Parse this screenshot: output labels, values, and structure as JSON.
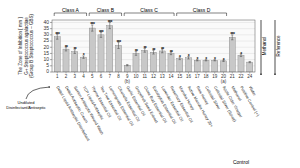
{
  "chart_data": {
    "type": "bar",
    "y_label": "The Zone of Inhibition [ mm ]\nG+ Streptococcus agalactiae\n(Group B Streptococcus – GBS)",
    "categories": [
      "1",
      "2",
      "3",
      "4",
      "5",
      "6",
      "7",
      "8",
      "9\n(b)",
      "10",
      "11",
      "12",
      "13",
      "14",
      "15",
      "16",
      "17",
      "18",
      "19",
      "20\n(a)",
      "21",
      "22",
      "24"
    ],
    "values": [
      28.5,
      18.5,
      16.5,
      12.0,
      35.5,
      30.0,
      37.5,
      21.5,
      5.5,
      15.0,
      17.5,
      16.0,
      17.0,
      15.0,
      11.0,
      11.5,
      9.5,
      9.5,
      9.5,
      9.0,
      28.0,
      13.5,
      8.0
    ],
    "errors": [
      2.0,
      1.5,
      1.5,
      1.0,
      2.5,
      2.0,
      2.5,
      2.5,
      0.5,
      1.5,
      1.5,
      1.5,
      1.5,
      1.0,
      1.0,
      1.0,
      0.5,
      0.5,
      0.5,
      0.5,
      2.0,
      1.0,
      0.5
    ],
    "star_labels": [
      "***",
      "**",
      "**",
      "*",
      "***",
      "***",
      "***",
      "***",
      null,
      "**",
      "**",
      "**",
      "**",
      "**",
      "*",
      "*",
      "*",
      "*",
      "*",
      "*",
      "***",
      "*",
      null
    ],
    "classes": [
      {
        "label": "Class A",
        "start": 0,
        "end": 3
      },
      {
        "label": "Class B",
        "start": 4,
        "end": 7
      },
      {
        "label": "Class C",
        "start": 8,
        "end": 13
      },
      {
        "label": "Class D",
        "start": 14,
        "end": 19
      }
    ],
    "diagonal_labels": [
      "Dettol Liquid Antiseptic Disinfectant",
      "Dettol Antiseptic Cream",
      "Savlon Antiseptic Wound Wash",
      "TCP Liquid Antiseptic",
      "Thyme Essential Oil",
      "Tea Tree Essential Oil",
      "Lemongrass Essential Oil",
      "Citronella Essential Oil",
      "Garlic Essential Oil",
      "Grapefruit Seed Extract",
      "Clove Bud Essential Oil",
      "Eucalyptus Essential Oil",
      "Lavender Essential Oil",
      "Rosemary Essential Oil",
      "Manuka Honey",
      "Active Manuka Honey 20+",
      "Raw Honey",
      "Colloidal Silver",
      "Colloidal Silver (Spray)",
      "Apple Cider Vinegar",
      "Methanol",
      "Positive Control (+)",
      "Water"
    ],
    "side_labels": [
      "Methanol",
      "Reference"
    ],
    "annotations": [
      "Undiluted\nDisinfectant/Antiseptic",
      "Control"
    ],
    "color": "#c8c8c8",
    "ylim": [
      0,
      42
    ],
    "yticks": [
      0,
      5,
      10,
      15,
      20,
      25,
      30,
      35,
      40
    ],
    "grid": true
  }
}
